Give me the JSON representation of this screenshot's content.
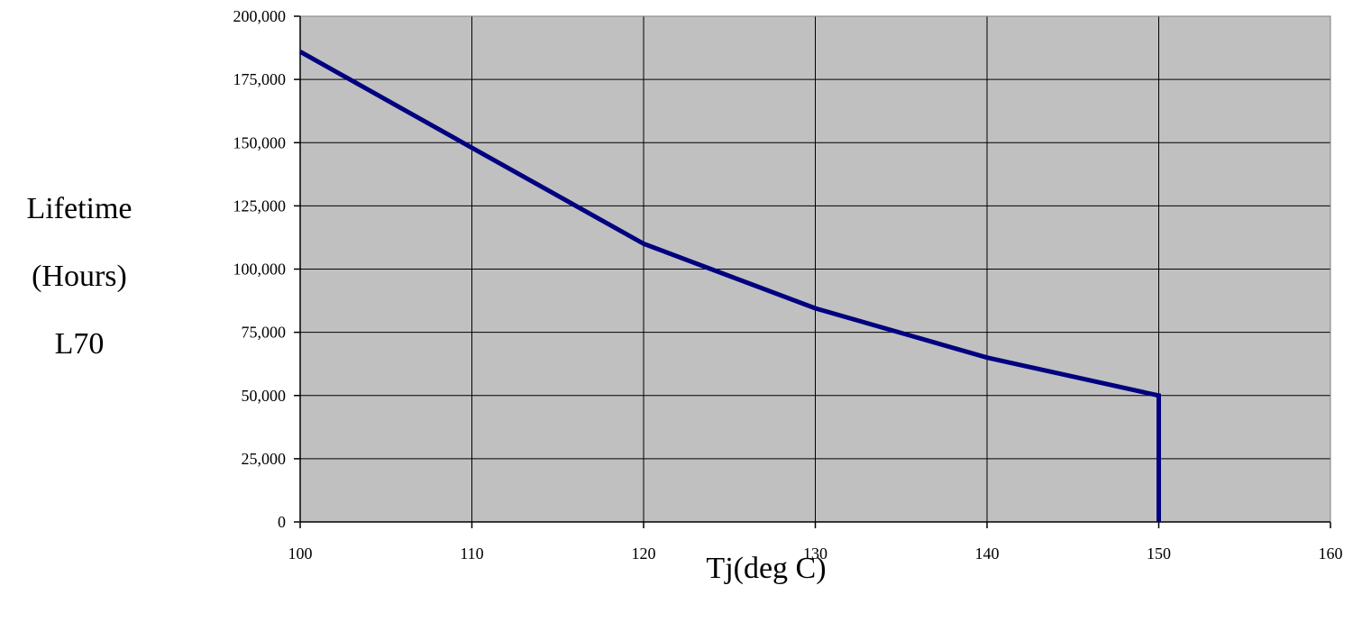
{
  "chart_data": {
    "type": "line",
    "title": "",
    "xlabel": "Tj(deg C)",
    "ylabel_lines": [
      "Lifetime",
      "(Hours)",
      "L70"
    ],
    "xlim": [
      100,
      160
    ],
    "ylim": [
      0,
      200000
    ],
    "x_ticks": [
      100,
      110,
      120,
      130,
      140,
      150,
      160
    ],
    "y_ticks": [
      0,
      25000,
      50000,
      75000,
      100000,
      125000,
      150000,
      175000,
      200000
    ],
    "x_tick_labels": [
      "100",
      "110",
      "120",
      "130",
      "140",
      "150",
      "160"
    ],
    "y_tick_labels": [
      "0",
      "25,000",
      "50,000",
      "75,000",
      "100,000",
      "125,000",
      "150,000",
      "175,000",
      "200,000"
    ],
    "grid": true,
    "legend": "none",
    "series": [
      {
        "x": [
          100,
          110,
          120,
          130,
          140,
          150,
          150
        ],
        "values": [
          186000,
          148000,
          110000,
          84500,
          65000,
          50000,
          0
        ],
        "color": "#000080"
      }
    ],
    "plot_background": "#c0c0c0",
    "grid_color": "#000000"
  }
}
